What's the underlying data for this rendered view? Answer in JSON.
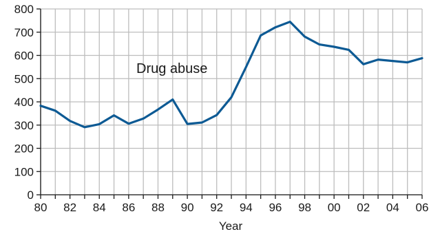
{
  "chart_data": {
    "type": "line",
    "title": "",
    "xlabel": "Year",
    "ylabel": "",
    "annotation": "Drug abuse",
    "grid": true,
    "line_color": "#0d5a94",
    "x": [
      1980,
      1981,
      1982,
      1983,
      1984,
      1985,
      1986,
      1987,
      1988,
      1989,
      1990,
      1991,
      1992,
      1993,
      1994,
      1995,
      1996,
      1997,
      1998,
      1999,
      2000,
      2001,
      2002,
      2003,
      2004,
      2005,
      2006
    ],
    "xlim": [
      1980,
      2006
    ],
    "ylim": [
      0,
      800
    ],
    "y_ticks": [
      0,
      100,
      200,
      300,
      400,
      500,
      600,
      700,
      800
    ],
    "x_tick_years": [
      1980,
      1982,
      1984,
      1986,
      1988,
      1990,
      1992,
      1994,
      1996,
      1998,
      2000,
      2002,
      2004,
      2006
    ],
    "x_tick_labels": [
      "80",
      "82",
      "84",
      "86",
      "88",
      "90",
      "92",
      "94",
      "96",
      "98",
      "00",
      "02",
      "04",
      "06"
    ],
    "series": [
      {
        "values": [
          383,
          362,
          318,
          291,
          304,
          342,
          306,
          328,
          367,
          410,
          305,
          311,
          343,
          420,
          550,
          686,
          721,
          745,
          681,
          647,
          637,
          624,
          562,
          582,
          576,
          570,
          588
        ]
      }
    ]
  }
}
